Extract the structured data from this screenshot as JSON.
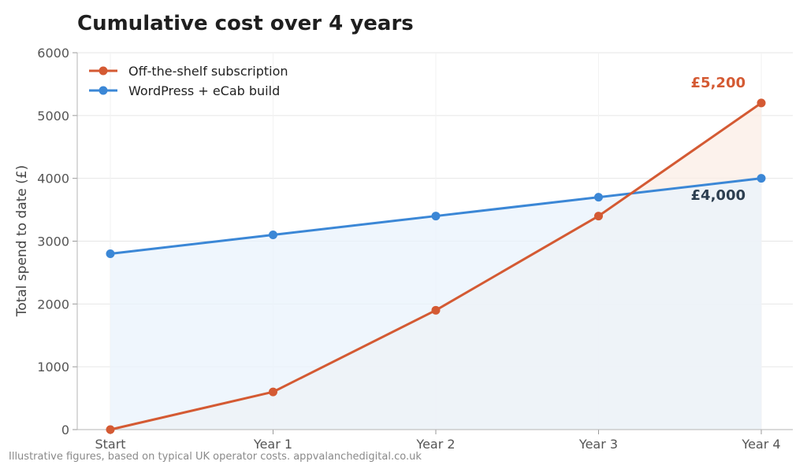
{
  "chart_data": {
    "type": "line",
    "title": "Cumulative cost over 4 years",
    "xlabel": "",
    "ylabel": "Total spend to date (£)",
    "categories": [
      "Start",
      "Year 1",
      "Year 2",
      "Year 3",
      "Year 4"
    ],
    "ylim": [
      0,
      6000
    ],
    "yticks": [
      0,
      1000,
      2000,
      3000,
      4000,
      5000,
      6000
    ],
    "grid": true,
    "legend_position": "top-left",
    "series": [
      {
        "name": "Off-the-shelf subscription",
        "values": [
          0,
          600,
          1900,
          3400,
          5200
        ],
        "color": "#d45a33",
        "fill_color": "#fbeee6",
        "end_label": "£5,200"
      },
      {
        "name": "WordPress + eCab build",
        "values": [
          2800,
          3100,
          3400,
          3700,
          4000
        ],
        "color": "#3b87d6",
        "fill_color": "#eaf3fc",
        "end_label": "£4,000",
        "end_label_color": "#2c3e50"
      }
    ],
    "footnote": "Illustrative figures, based on typical UK operator costs. appvalanchedigital.co.uk"
  }
}
